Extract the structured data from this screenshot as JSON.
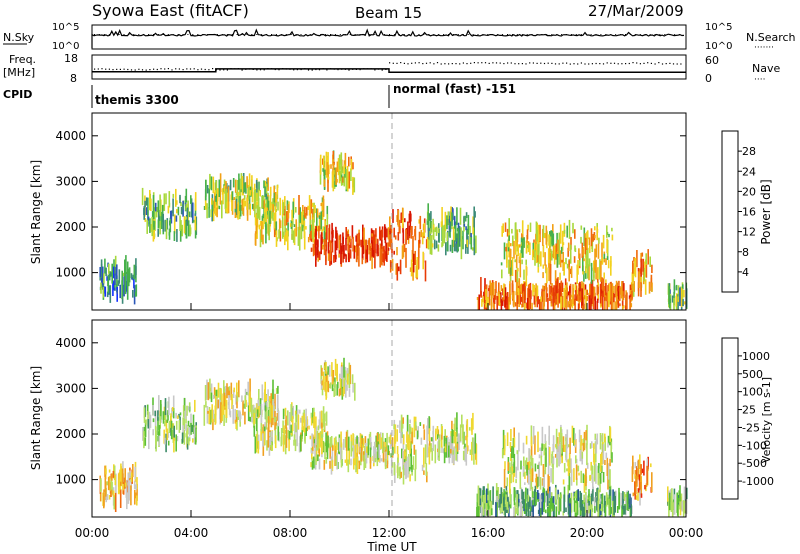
{
  "header": {
    "station": "Syowa East (fitACF)",
    "beam": "Beam 15",
    "date": "27/Mar/2009"
  },
  "status_panels": {
    "nsky_label": "N.Sky",
    "nsky_axis_top": "10^5",
    "nsky_axis_bottom": "10^0",
    "nsearch_label": "N.Search",
    "nsearch_axis_top": "10^5",
    "nsearch_axis_bottom": "10^0",
    "freq_label_1": "Freq.",
    "freq_label_2": "[MHz]",
    "freq_axis_top": "18",
    "freq_axis_bottom": "8",
    "nave_label": "Nave",
    "nave_axis_top": "60",
    "nave_axis_bottom": "0",
    "cpid_label": "CPID",
    "cpid_segments": [
      {
        "name": "themis 3300",
        "start_hour": 0,
        "end_hour": 12
      },
      {
        "name": "normal (fast) -151",
        "start_hour": 12,
        "end_hour": 24
      }
    ],
    "freq_steps": [
      {
        "start_hour": 0,
        "end_hour": 5,
        "value": 11
      },
      {
        "start_hour": 5,
        "end_hour": 12,
        "value": 12.2
      },
      {
        "start_hour": 12,
        "end_hour": 24,
        "value": 10.8
      }
    ]
  },
  "xaxis": {
    "label": "Time UT",
    "ticks": [
      "00:00",
      "04:00",
      "08:00",
      "12:00",
      "16:00",
      "20:00",
      "00:00"
    ],
    "tick_hours": [
      0,
      4,
      8,
      12,
      16,
      20,
      24
    ]
  },
  "chart_data": [
    {
      "type": "heatmap",
      "ylabel": "Slant Range [km]",
      "ylim": [
        180,
        4500
      ],
      "yticks": [
        "1000",
        "2000",
        "3000",
        "4000"
      ],
      "ytick_values": [
        1000,
        2000,
        3000,
        4000
      ],
      "xlim_hours": [
        0,
        24
      ],
      "colorbar": {
        "label": "Power [dB]",
        "ticks": [
          "4",
          "8",
          "12",
          "16",
          "20",
          "24",
          "28"
        ],
        "colors": [
          "#1432ff",
          "#2a56b8",
          "#3c8a78",
          "#46b04a",
          "#a8d83c",
          "#f2d21e",
          "#f2a014",
          "#f06a0a",
          "#e83a06",
          "#d81400"
        ]
      },
      "echo_regions": [
        {
          "t0": 0.3,
          "t1": 1.8,
          "r0": 500,
          "r1": 1200,
          "level": 2
        },
        {
          "t0": 2.0,
          "t1": 4.2,
          "r0": 1800,
          "r1": 2700,
          "level": 3
        },
        {
          "t0": 4.5,
          "t1": 7.5,
          "r0": 2300,
          "r1": 3000,
          "level": 4
        },
        {
          "t0": 6.5,
          "t1": 9.5,
          "r0": 1700,
          "r1": 2500,
          "level": 5
        },
        {
          "t0": 8.8,
          "t1": 12.0,
          "r0": 1300,
          "r1": 1900,
          "level": 8
        },
        {
          "t0": 9.2,
          "t1": 10.6,
          "r0": 2900,
          "r1": 3500,
          "level": 5
        },
        {
          "t0": 12.0,
          "t1": 13.5,
          "r0": 1000,
          "r1": 2300,
          "level": 7
        },
        {
          "t0": 13.5,
          "t1": 15.5,
          "r0": 1500,
          "r1": 2300,
          "level": 3
        },
        {
          "t0": 15.5,
          "t1": 21.8,
          "r0": 250,
          "r1": 700,
          "level": 7
        },
        {
          "t0": 16.5,
          "t1": 21.0,
          "r0": 900,
          "r1": 2000,
          "level": 5
        },
        {
          "t0": 21.8,
          "t1": 22.6,
          "r0": 600,
          "r1": 1400,
          "level": 6
        },
        {
          "t0": 23.2,
          "t1": 24.0,
          "r0": 300,
          "r1": 700,
          "level": 3
        }
      ]
    },
    {
      "type": "heatmap",
      "ylabel": "Slant Range [km]",
      "ylim": [
        180,
        4500
      ],
      "yticks": [
        "1000",
        "2000",
        "3000",
        "4000"
      ],
      "ytick_values": [
        1000,
        2000,
        3000,
        4000
      ],
      "xlim_hours": [
        0,
        24
      ],
      "colorbar": {
        "label": "Velocity [m s-1]",
        "ticks": [
          "1000",
          "500",
          "100",
          "25",
          "-25",
          "-100",
          "-500",
          "-1000"
        ],
        "colors": [
          "#1a3cc8",
          "#2a5a98",
          "#3c8a68",
          "#5cc034",
          "#b4e060",
          "#c8c8c8",
          "#f0d830",
          "#f0a020",
          "#f06a10",
          "#e82808"
        ]
      },
      "echo_regions": [
        {
          "t0": 0.3,
          "t1": 1.8,
          "r0": 500,
          "r1": 1200,
          "level": 6
        },
        {
          "t0": 2.0,
          "t1": 4.2,
          "r0": 1800,
          "r1": 2700,
          "level": 4
        },
        {
          "t0": 4.5,
          "t1": 7.5,
          "r0": 2300,
          "r1": 3000,
          "level": 5
        },
        {
          "t0": 6.5,
          "t1": 9.5,
          "r0": 1700,
          "r1": 2500,
          "level": 5
        },
        {
          "t0": 8.8,
          "t1": 12.0,
          "r0": 1300,
          "r1": 1900,
          "level": 5
        },
        {
          "t0": 9.2,
          "t1": 10.6,
          "r0": 2900,
          "r1": 3500,
          "level": 5
        },
        {
          "t0": 12.0,
          "t1": 13.5,
          "r0": 1000,
          "r1": 2300,
          "level": 5
        },
        {
          "t0": 13.5,
          "t1": 15.5,
          "r0": 1500,
          "r1": 2300,
          "level": 5
        },
        {
          "t0": 15.5,
          "t1": 21.8,
          "r0": 250,
          "r1": 700,
          "level": 3
        },
        {
          "t0": 16.5,
          "t1": 21.0,
          "r0": 900,
          "r1": 2000,
          "level": 5
        },
        {
          "t0": 21.8,
          "t1": 22.6,
          "r0": 600,
          "r1": 1400,
          "level": 7
        },
        {
          "t0": 23.2,
          "t1": 24.0,
          "r0": 300,
          "r1": 700,
          "level": 4
        }
      ]
    }
  ]
}
